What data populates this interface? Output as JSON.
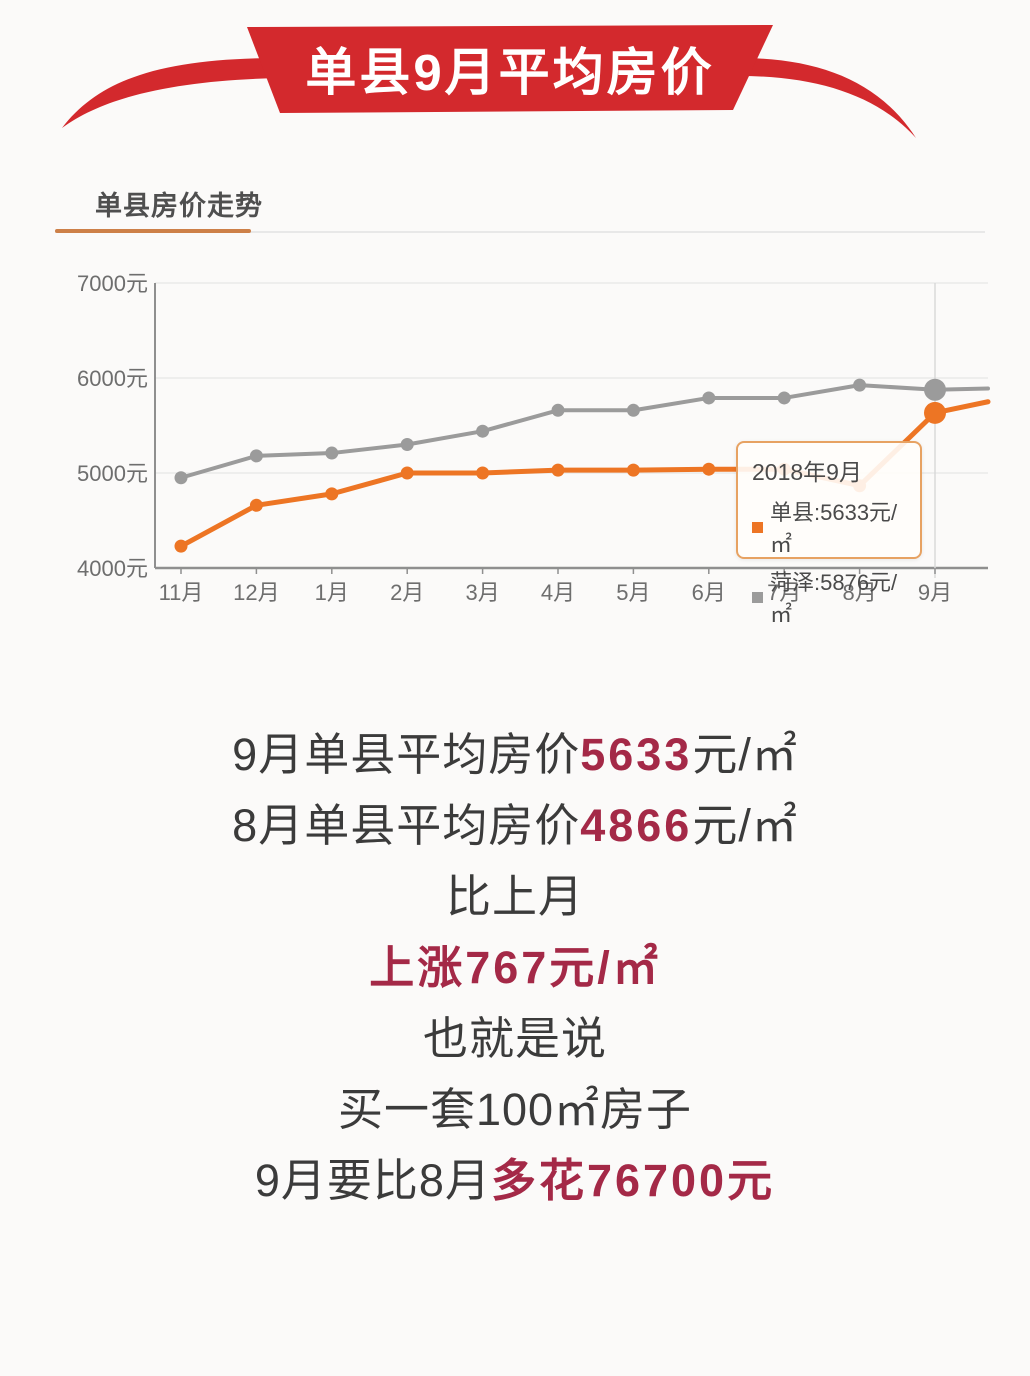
{
  "colors": {
    "banner_red": "#d3292d",
    "accent_crimson": "#a42947",
    "dark_text": "#3b3b3b",
    "underline_orange": "#cd8048",
    "axis_text": "#6e6e6e",
    "grid_line": "#e9e9e9",
    "axis_line": "#8f8f8f",
    "crosshair": "#d9d9d9",
    "tooltip_border": "#e7a262",
    "series_orange": "#ed7524",
    "series_gray": "#9b9b9b"
  },
  "banner": {
    "title": "单县9月平均房价"
  },
  "section": {
    "title": "单县房价走势"
  },
  "chart_data": {
    "type": "line",
    "title": "单县房价走势",
    "x_labels": [
      "11月",
      "12月",
      "1月",
      "2月",
      "3月",
      "4月",
      "5月",
      "6月",
      "7月",
      "8月",
      "9月"
    ],
    "y_tick_labels": [
      "7000元",
      "6000元",
      "5000元",
      "4000元"
    ],
    "y_tick_values": [
      7000,
      6000,
      5000,
      4000
    ],
    "ylim": [
      4000,
      7000
    ],
    "grid": true,
    "legend_position": "tooltip-only",
    "series": [
      {
        "name": "单县",
        "color": "#ed7524",
        "values": [
          4230,
          4660,
          4780,
          5000,
          5000,
          5030,
          5030,
          5040,
          5040,
          4866,
          5633
        ]
      },
      {
        "name": "菏泽",
        "color": "#9b9b9b",
        "values": [
          4950,
          5180,
          5210,
          5300,
          5440,
          5660,
          5660,
          5790,
          5790,
          5925,
          5876
        ]
      }
    ],
    "highlight": {
      "index": 10,
      "x_label": "9月"
    },
    "continuation_values": {
      "单县": 5750,
      "菏泽": 5890
    },
    "tooltip": {
      "title": "2018年9月",
      "rows": [
        {
          "label": "单县:5633元/㎡",
          "color": "#ed7524"
        },
        {
          "label": "菏泽:5876元/㎡",
          "color": "#9b9b9b"
        }
      ]
    }
  },
  "summary": {
    "lines": [
      {
        "segments": [
          {
            "t": "9月单县平均房价",
            "s": "dark"
          },
          {
            "t": "5633",
            "s": "accent"
          },
          {
            "t": "元/㎡",
            "s": "dark"
          }
        ]
      },
      {
        "segments": [
          {
            "t": "8月单县平均房价",
            "s": "dark"
          },
          {
            "t": "4866",
            "s": "accent"
          },
          {
            "t": "元/㎡",
            "s": "dark"
          }
        ]
      },
      {
        "segments": [
          {
            "t": "比上月",
            "s": "dark"
          }
        ]
      },
      {
        "segments": [
          {
            "t": "上涨767元/㎡",
            "s": "accent"
          }
        ]
      },
      {
        "segments": [
          {
            "t": "也就是说",
            "s": "dark"
          }
        ]
      },
      {
        "segments": [
          {
            "t": "买一套100㎡房子",
            "s": "dark"
          }
        ]
      },
      {
        "segments": [
          {
            "t": "9月要比8月",
            "s": "dark"
          },
          {
            "t": "多花76700元",
            "s": "accent"
          }
        ]
      }
    ]
  }
}
